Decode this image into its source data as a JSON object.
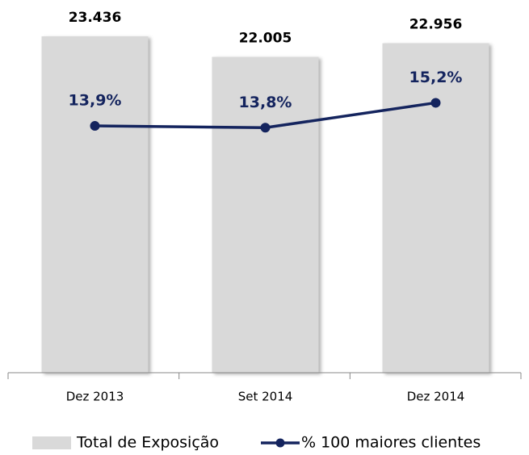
{
  "chart_data": {
    "type": "bar-line",
    "categories": [
      "Dez 2013",
      "Set 2014",
      "Dez 2014"
    ],
    "series": [
      {
        "name": "Total de Exposição",
        "type": "bar",
        "color": "#d9d9d9",
        "values": [
          23436,
          22005,
          22956
        ],
        "value_labels": [
          "23.436",
          "22.005",
          "22.956"
        ]
      },
      {
        "name": "% 100 maiores clientes",
        "type": "line",
        "axis": "y2",
        "color": "#14245e",
        "values": [
          13.9,
          13.8,
          15.2
        ],
        "value_labels": [
          "13,9%",
          "13,8%",
          "15,2%"
        ]
      }
    ],
    "ylim": [
      0,
      24000
    ],
    "y2lim": [
      0,
      19.4
    ],
    "legend": "bottom"
  }
}
